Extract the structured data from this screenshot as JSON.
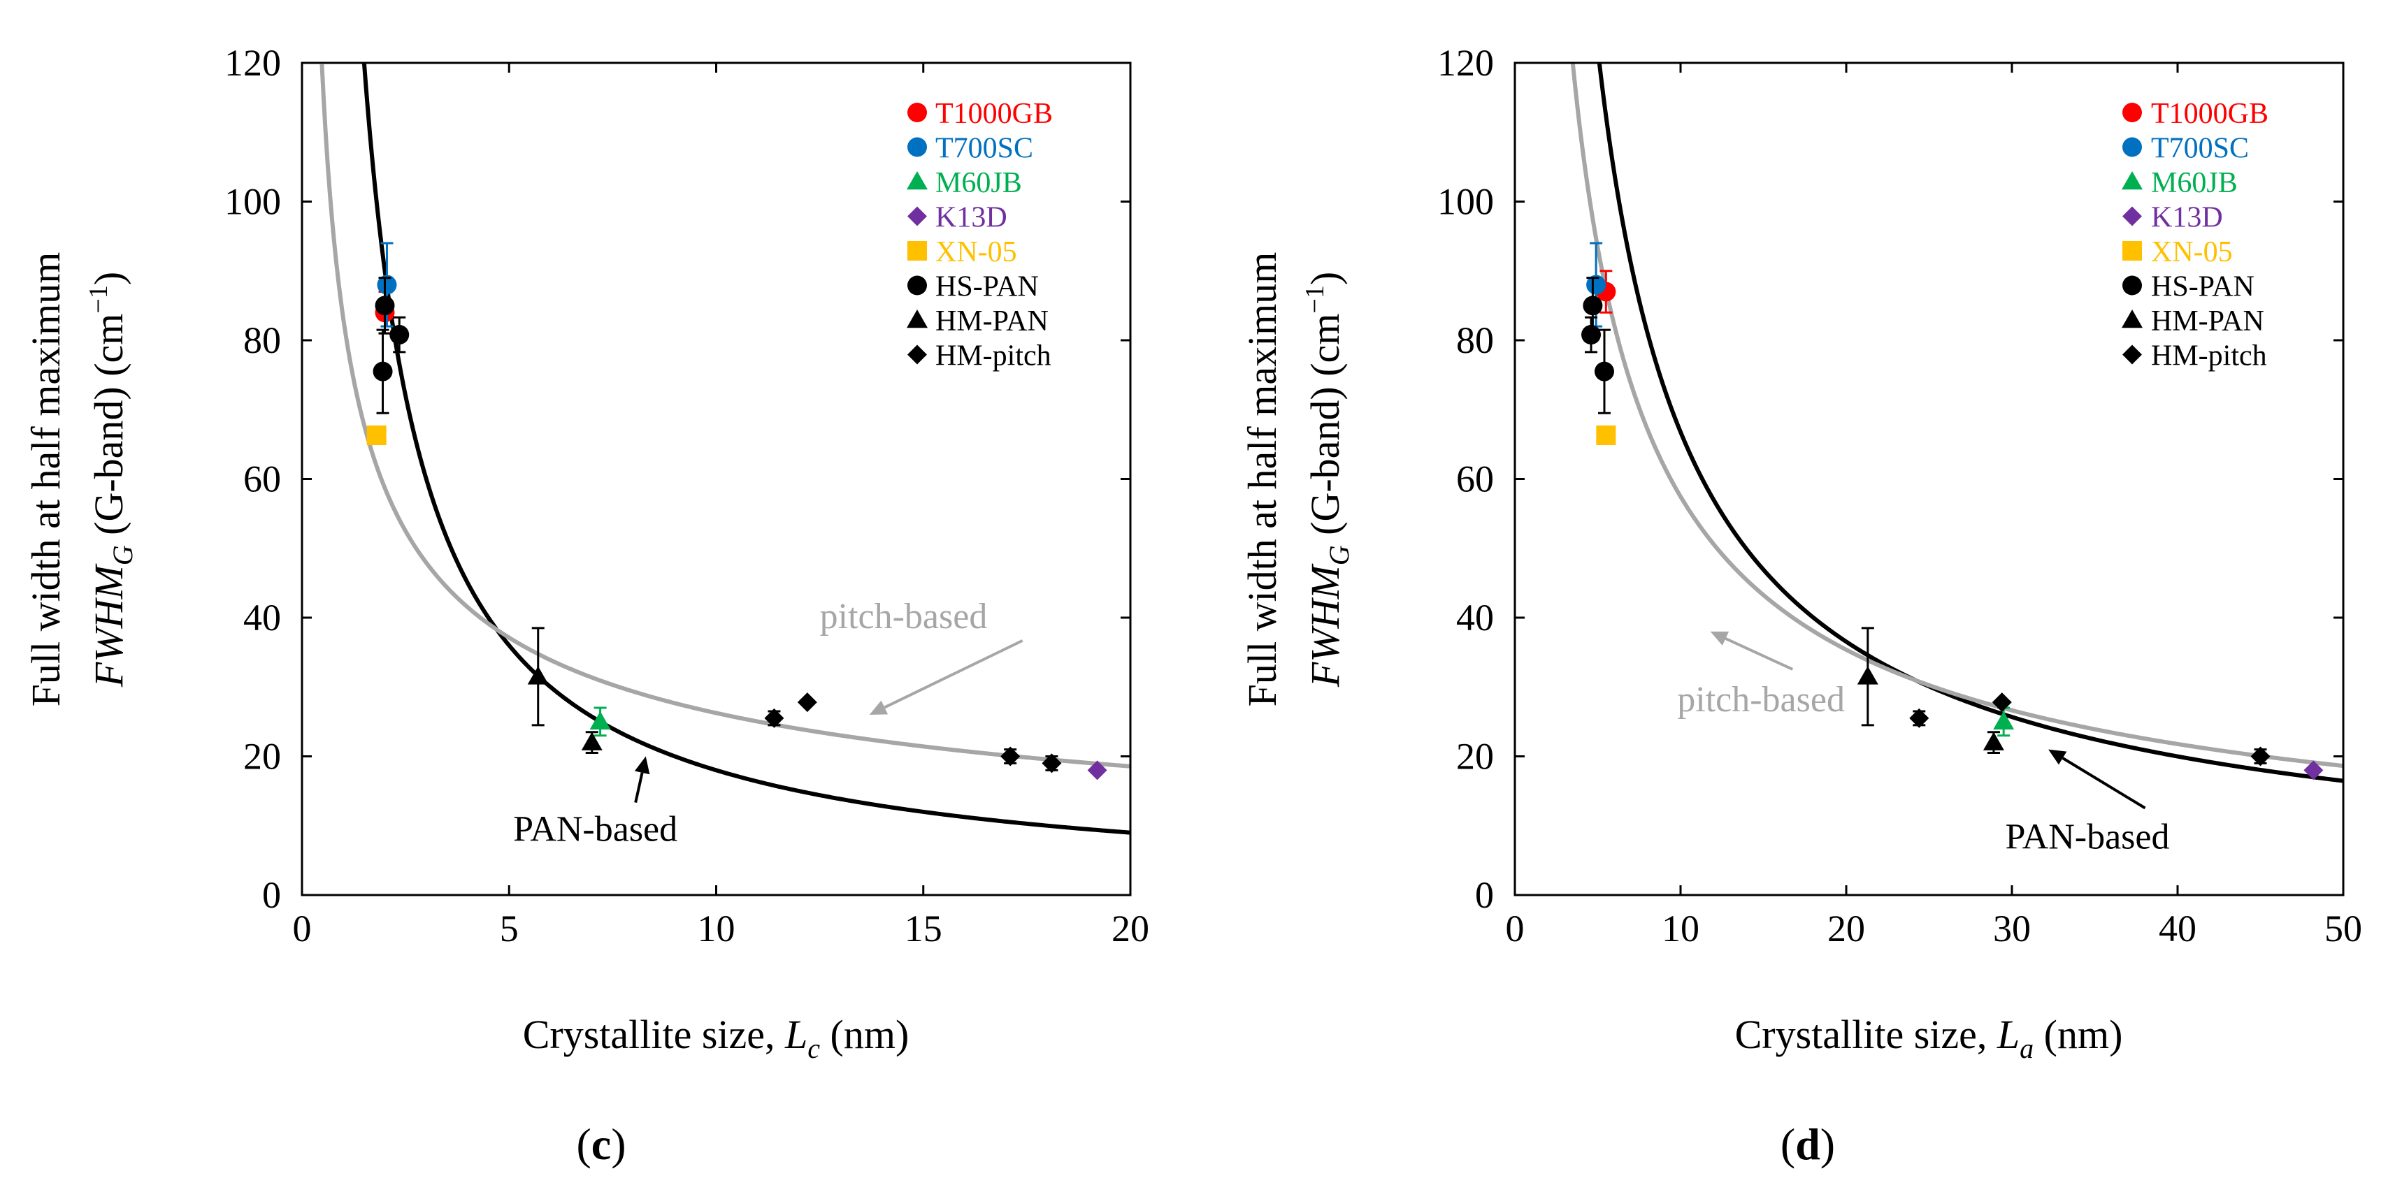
{
  "figure_meta": {
    "colors": {
      "axis": "#000000",
      "pan_curve": "#000000",
      "pitch_curve": "#a6a6a6",
      "T1000GB": "#ff0000",
      "T700SC": "#0070c0",
      "M60JB": "#00b050",
      "K13D": "#7030a0",
      "XN-05": "#ffc000",
      "generic": "#000000"
    },
    "legend_items": [
      {
        "label": "T1000GB",
        "marker": "circle",
        "color": "#ff0000",
        "text_color": "#ff0000"
      },
      {
        "label": "T700SC",
        "marker": "circle",
        "color": "#0070c0",
        "text_color": "#0070c0"
      },
      {
        "label": "M60JB",
        "marker": "triangle",
        "color": "#00b050",
        "text_color": "#00b050"
      },
      {
        "label": "K13D",
        "marker": "diamond",
        "color": "#7030a0",
        "text_color": "#7030a0"
      },
      {
        "label": "XN-05",
        "marker": "square",
        "color": "#ffc000",
        "text_color": "#ffc000"
      },
      {
        "label": "HS-PAN",
        "marker": "circle",
        "color": "#000000",
        "text_color": "#000000"
      },
      {
        "label": "HM-PAN",
        "marker": "triangle",
        "color": "#000000",
        "text_color": "#000000"
      },
      {
        "label": "HM-pitch",
        "marker": "diamond",
        "color": "#000000",
        "text_color": "#000000"
      }
    ]
  },
  "chart_data": [
    {
      "type": "scatter",
      "panel_label": "c",
      "title": "",
      "ylabel_line1": "Full width at half maximum",
      "ylabel_line2_italic": "FWHM",
      "ylabel_line2_sub": "G",
      "ylabel_line2_rest": " (G-band) (cm",
      "ylabel_line2_sup": "−1",
      "ylabel_line2_end": ")",
      "xlabel_text": "Crystallite size, ",
      "xlabel_italic": "L",
      "xlabel_sub": "c",
      "xlabel_end": " (nm)",
      "xlim": [
        0,
        20
      ],
      "ylim": [
        0,
        120
      ],
      "xticks": [
        0,
        5,
        10,
        15,
        20
      ],
      "yticks": [
        0,
        20,
        40,
        60,
        80,
        100,
        120
      ],
      "grid": false,
      "legend_position": "top-right",
      "series": [
        {
          "name": "T1000GB",
          "marker": "circle",
          "color": "#ff0000",
          "points": [
            {
              "x": 2.0,
              "y": 84.0,
              "err": 3
            }
          ]
        },
        {
          "name": "T700SC",
          "marker": "circle",
          "color": "#0070c0",
          "points": [
            {
              "x": 2.05,
              "y": 88.0,
              "err": 6
            }
          ]
        },
        {
          "name": "M60JB",
          "marker": "triangle",
          "color": "#00b050",
          "points": [
            {
              "x": 7.2,
              "y": 25.0,
              "err": 2
            }
          ]
        },
        {
          "name": "K13D",
          "marker": "diamond",
          "color": "#7030a0",
          "points": [
            {
              "x": 19.2,
              "y": 18.0,
              "err": 0
            }
          ]
        },
        {
          "name": "XN-05",
          "marker": "square",
          "color": "#ffc000",
          "points": [
            {
              "x": 1.8,
              "y": 66.3,
              "err": 0
            }
          ]
        },
        {
          "name": "HS-PAN",
          "marker": "circle",
          "color": "#000000",
          "points": [
            {
              "x": 1.95,
              "y": 75.5,
              "err": 6
            },
            {
              "x": 2.0,
              "y": 85.0,
              "err": 4
            },
            {
              "x": 2.35,
              "y": 80.8,
              "err": 2.5
            }
          ]
        },
        {
          "name": "HM-PAN",
          "marker": "triangle",
          "color": "#000000",
          "points": [
            {
              "x": 5.7,
              "y": 31.5,
              "err": 7
            },
            {
              "x": 7.0,
              "y": 22.0,
              "err": 1.5
            }
          ]
        },
        {
          "name": "HM-pitch",
          "marker": "diamond",
          "color": "#000000",
          "points": [
            {
              "x": 11.4,
              "y": 25.5,
              "err": 1
            },
            {
              "x": 12.2,
              "y": 27.8,
              "err": 0
            },
            {
              "x": 17.1,
              "y": 20.0,
              "err": 1
            },
            {
              "x": 18.1,
              "y": 19.0,
              "err": 1
            }
          ]
        }
      ],
      "curves": [
        {
          "name": "PAN-based",
          "color": "#000000",
          "equation": "a/x",
          "a": 180,
          "x_from": 1.5,
          "x_to": 20
        },
        {
          "name": "pitch-based",
          "color": "#a6a6a6",
          "equation": "a/sqrt(x)",
          "a": 83,
          "x_from": 0.48,
          "x_to": 20
        }
      ],
      "annotations": [
        {
          "text": "pitch-based",
          "color": "#a6a6a6",
          "x": 12.5,
          "y": 38.5,
          "arrow_to": [
            13.7,
            26
          ]
        },
        {
          "text": "PAN-based",
          "color": "#000000",
          "x": 5.1,
          "y": 7.8,
          "arrow_to": [
            8.3,
            20
          ]
        }
      ]
    },
    {
      "type": "scatter",
      "panel_label": "d",
      "title": "",
      "ylabel_line1": "Full width at half maximum",
      "ylabel_line2_italic": "FWHM",
      "ylabel_line2_sub": "G",
      "ylabel_line2_rest": " (G-band) (cm",
      "ylabel_line2_sup": "−1",
      "ylabel_line2_end": ")",
      "xlabel_text": "Crystallite size, ",
      "xlabel_italic": "L",
      "xlabel_sub": "a",
      "xlabel_end": " (nm)",
      "xlim": [
        0,
        50
      ],
      "ylim": [
        0,
        120
      ],
      "xticks": [
        0,
        10,
        20,
        30,
        40,
        50
      ],
      "yticks": [
        0,
        20,
        40,
        60,
        80,
        100,
        120
      ],
      "grid": false,
      "legend_position": "top-right",
      "series": [
        {
          "name": "T1000GB",
          "marker": "circle",
          "color": "#ff0000",
          "points": [
            {
              "x": 5.5,
              "y": 87.0,
              "err": 3
            }
          ]
        },
        {
          "name": "T700SC",
          "marker": "circle",
          "color": "#0070c0",
          "points": [
            {
              "x": 4.9,
              "y": 88.0,
              "err": 6
            }
          ]
        },
        {
          "name": "M60JB",
          "marker": "triangle",
          "color": "#00b050",
          "points": [
            {
              "x": 29.5,
              "y": 25.0,
              "err": 2
            }
          ]
        },
        {
          "name": "K13D",
          "marker": "diamond",
          "color": "#7030a0",
          "points": [
            {
              "x": 48.2,
              "y": 18.0,
              "err": 0
            }
          ]
        },
        {
          "name": "XN-05",
          "marker": "square",
          "color": "#ffc000",
          "points": [
            {
              "x": 5.5,
              "y": 66.3,
              "err": 0
            }
          ]
        },
        {
          "name": "HS-PAN",
          "marker": "circle",
          "color": "#000000",
          "points": [
            {
              "x": 5.4,
              "y": 75.5,
              "err": 6
            },
            {
              "x": 4.7,
              "y": 85.0,
              "err": 4
            },
            {
              "x": 4.6,
              "y": 80.8,
              "err": 2.5
            }
          ]
        },
        {
          "name": "HM-PAN",
          "marker": "triangle",
          "color": "#000000",
          "points": [
            {
              "x": 21.3,
              "y": 31.5,
              "err": 7
            },
            {
              "x": 28.9,
              "y": 22.0,
              "err": 1.5
            }
          ]
        },
        {
          "name": "HM-pitch",
          "marker": "diamond",
          "color": "#000000",
          "points": [
            {
              "x": 24.4,
              "y": 25.5,
              "err": 1
            },
            {
              "x": 29.4,
              "y": 27.8,
              "err": 0
            },
            {
              "x": 45.0,
              "y": 20.0,
              "err": 1
            }
          ]
        }
      ],
      "curves": [
        {
          "name": "PAN-based",
          "color": "#000000",
          "equation": "a/x^0.87",
          "a": 495,
          "x_from": 3.6,
          "x_to": 50
        },
        {
          "name": "pitch-based",
          "color": "#a6a6a6",
          "equation": "a/x^0.7",
          "a": 288,
          "x_from": 2.0,
          "x_to": 50
        }
      ],
      "annotations": [
        {
          "text": "pitch-based",
          "color": "#a6a6a6",
          "x": 9.8,
          "y": 26.5,
          "arrow_to": [
            11.8,
            38
          ]
        },
        {
          "text": "PAN-based",
          "color": "#000000",
          "x": 29.6,
          "y": 6.7,
          "arrow_to": [
            32.2,
            21
          ]
        }
      ]
    }
  ]
}
